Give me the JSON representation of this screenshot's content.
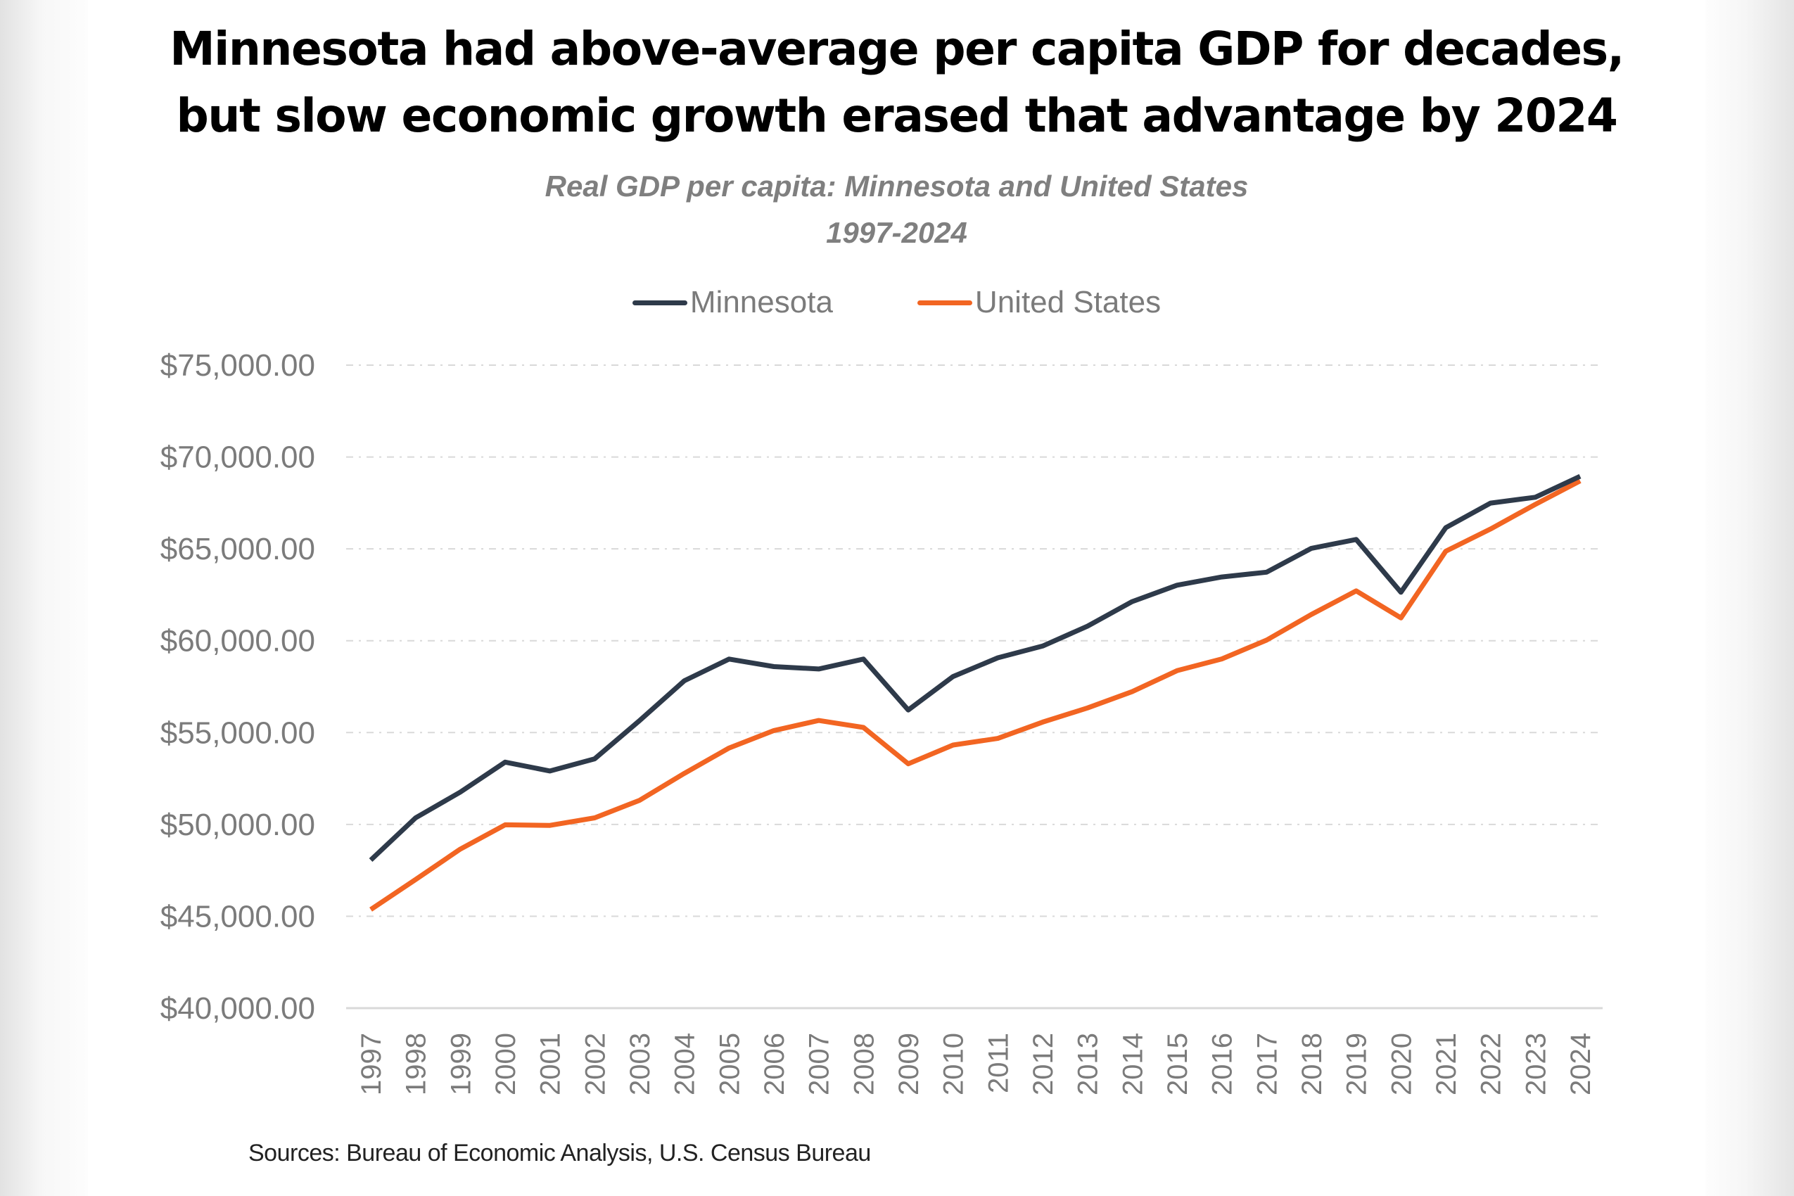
{
  "title_lines": [
    "Minnesota had above-average per capita GDP for decades,",
    "but slow economic growth erased that advantage by 2024"
  ],
  "subtitle_lines": [
    "Real GDP per capita: Minnesota and United States",
    "1997-2024"
  ],
  "source": "Sources: Bureau of Economic Analysis, U.S. Census Bureau",
  "chart_data": {
    "type": "line",
    "title": "Minnesota had above-average per capita GDP for decades, but slow economic growth erased that advantage by 2024",
    "subtitle": "Real GDP per capita: Minnesota and United States 1997-2024",
    "xlabel": "",
    "ylabel": "",
    "x": [
      "1997",
      "1998",
      "1999",
      "2000",
      "2001",
      "2002",
      "2003",
      "2004",
      "2005",
      "2006",
      "2007",
      "2008",
      "2009",
      "2010",
      "2011",
      "2012",
      "2013",
      "2014",
      "2015",
      "2016",
      "2017",
      "2018",
      "2019",
      "2020",
      "2021",
      "2022",
      "2023",
      "2024"
    ],
    "series": [
      {
        "name": "Minnesota",
        "color": "#2e3a4a",
        "values": [
          48060,
          50360,
          51760,
          53390,
          52910,
          53570,
          55650,
          57820,
          59000,
          58590,
          58460,
          59000,
          56230,
          58050,
          59070,
          59710,
          60790,
          62130,
          63020,
          63470,
          63730,
          65030,
          65510,
          62640,
          66150,
          67490,
          67810,
          68950
        ]
      },
      {
        "name": "United States",
        "color": "#f26522",
        "values": [
          45370,
          47000,
          48660,
          49980,
          49950,
          50360,
          51310,
          52780,
          54160,
          55110,
          55660,
          55280,
          53300,
          54320,
          54680,
          55570,
          56340,
          57230,
          58370,
          59010,
          60030,
          61430,
          62710,
          61240,
          64870,
          66080,
          67420,
          68700
        ]
      }
    ],
    "ylim": [
      40000,
      75000
    ],
    "yticks": [
      40000,
      45000,
      50000,
      55000,
      60000,
      65000,
      70000,
      75000
    ],
    "ytick_labels": [
      "$40,000.00",
      "$45,000.00",
      "$50,000.00",
      "$55,000.00",
      "$60,000.00",
      "$65,000.00",
      "$70,000.00",
      "$75,000.00"
    ],
    "grid": true,
    "grid_style": "dashed horizontal",
    "legend_position": "top-center"
  }
}
